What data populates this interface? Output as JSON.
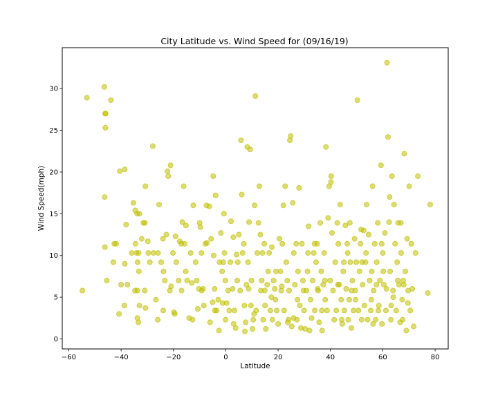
{
  "chart_data": {
    "type": "scatter",
    "title": "City Latitude vs. Wind Speed for (09/16/19)",
    "xlabel": "Latitude",
    "ylabel": "Wind Speed(mph)",
    "xlim": [
      -62.5,
      85
    ],
    "ylim": [
      -1.2,
      34.9
    ],
    "xticks": [
      -60,
      -40,
      -20,
      0,
      20,
      40,
      60,
      80
    ],
    "yticks": [
      0,
      5,
      10,
      15,
      20,
      25,
      30
    ],
    "grid": false,
    "legend": "none",
    "marker_color": "#bfbf00",
    "marker_opacity": 0.55,
    "points": [
      [
        -54.8,
        5.8
      ],
      [
        -53.1,
        28.9
      ],
      [
        -46.4,
        30.2
      ],
      [
        -46.1,
        27.0
      ],
      [
        -45.9,
        27.0
      ],
      [
        -46.0,
        25.3
      ],
      [
        -46.3,
        17.0
      ],
      [
        -46.2,
        11.0
      ],
      [
        -45.5,
        7.0
      ],
      [
        -43.9,
        28.6
      ],
      [
        -42.6,
        11.4
      ],
      [
        -41.9,
        11.4
      ],
      [
        -43.0,
        9.2
      ],
      [
        -40.5,
        20.1
      ],
      [
        -40.8,
        3.0
      ],
      [
        -38.6,
        20.3
      ],
      [
        -38.1,
        13.7
      ],
      [
        -37.6,
        6.5
      ],
      [
        -38.8,
        4.0
      ],
      [
        -38.6,
        9.0
      ],
      [
        -35.3,
        16.3
      ],
      [
        -34.6,
        15.4
      ],
      [
        -33.9,
        15.0
      ],
      [
        -33.0,
        15.0
      ],
      [
        -34.5,
        11.4
      ],
      [
        -34.1,
        10.3
      ],
      [
        -33.3,
        10.3
      ],
      [
        -33.7,
        9.2
      ],
      [
        -33.2,
        8.1
      ],
      [
        -33.8,
        5.8
      ],
      [
        -34.7,
        5.8
      ],
      [
        -33.0,
        4.0
      ],
      [
        -33.8,
        2.5
      ],
      [
        -33.4,
        2.0
      ],
      [
        -32.1,
        12.0
      ],
      [
        -31.5,
        13.9
      ],
      [
        -30.9,
        13.9
      ],
      [
        -30.7,
        18.3
      ],
      [
        -29.8,
        11.7
      ],
      [
        -29.6,
        10.3
      ],
      [
        -31.0,
        5.8
      ],
      [
        -30.7,
        3.7
      ],
      [
        -27.9,
        23.1
      ],
      [
        -27.6,
        10.3
      ],
      [
        -26.7,
        4.7
      ],
      [
        -25.5,
        16.1
      ],
      [
        -25.9,
        10.3
      ],
      [
        -24.7,
        9.2
      ],
      [
        -24.0,
        12.0
      ],
      [
        -23.8,
        8.1
      ],
      [
        -23.3,
        7.0
      ],
      [
        -23.9,
        3.4
      ],
      [
        -22.3,
        20.1
      ],
      [
        -22.0,
        19.5
      ],
      [
        -21.1,
        20.8
      ],
      [
        -21.4,
        5.8
      ],
      [
        -20.9,
        6.3
      ],
      [
        -20.2,
        10.3
      ],
      [
        -19.8,
        3.2
      ],
      [
        -19.5,
        3.0
      ],
      [
        -19.2,
        12.3
      ],
      [
        -18.9,
        9.2
      ],
      [
        -17.6,
        11.7
      ],
      [
        -16.9,
        5.8
      ],
      [
        -16.1,
        18.3
      ],
      [
        -16.6,
        14.0
      ],
      [
        -15.7,
        11.4
      ],
      [
        -15.2,
        13.6
      ],
      [
        -15.3,
        8.1
      ],
      [
        -14.8,
        7.0
      ],
      [
        -13.4,
        10.3
      ],
      [
        -13.0,
        6.7
      ],
      [
        -12.7,
        2.3
      ],
      [
        -12.4,
        16.0
      ],
      [
        -11.5,
        9.2
      ],
      [
        -11.1,
        7.0
      ],
      [
        -10.7,
        3.6
      ],
      [
        -10.0,
        13.9
      ],
      [
        -9.7,
        13.4
      ],
      [
        -9.3,
        10.3
      ],
      [
        -9.2,
        5.8
      ],
      [
        -8.7,
        6.0
      ],
      [
        -8.4,
        4.0
      ],
      [
        -7.8,
        11.4
      ],
      [
        -7.4,
        16.0
      ],
      [
        -7.2,
        11.5
      ],
      [
        -6.3,
        15.9
      ],
      [
        -5.6,
        12.0
      ],
      [
        -4.8,
        19.5
      ],
      [
        -4.6,
        10.0
      ],
      [
        -4.3,
        6.0
      ],
      [
        -4.2,
        3.4
      ],
      [
        -3.9,
        17.2
      ],
      [
        -3.5,
        3.4
      ],
      [
        -2.9,
        4.7
      ],
      [
        -2.4,
        9.2
      ],
      [
        -2.6,
        1.0
      ],
      [
        -1.9,
        12.7
      ],
      [
        -1.4,
        8.1
      ],
      [
        -1.2,
        4.3
      ],
      [
        -0.7,
        15.0
      ],
      [
        -0.5,
        10.3
      ],
      [
        -0.2,
        7.0
      ],
      [
        -0.1,
        2.3
      ],
      [
        0.3,
        4.3
      ],
      [
        0.9,
        5.8
      ],
      [
        1.3,
        3.4
      ],
      [
        1.7,
        9.2
      ],
      [
        2.0,
        14.1
      ],
      [
        2.6,
        6.0
      ],
      [
        2.9,
        12.2
      ],
      [
        3.3,
        3.4
      ],
      [
        3.8,
        1.3
      ],
      [
        4.1,
        10.1
      ],
      [
        4.6,
        9.2
      ],
      [
        5.0,
        12.5
      ],
      [
        5.5,
        5.8
      ],
      [
        5.8,
        23.8
      ],
      [
        6.1,
        17.3
      ],
      [
        6.4,
        10.3
      ],
      [
        6.9,
        11.4
      ],
      [
        7.1,
        4.0
      ],
      [
        7.3,
        0.9
      ],
      [
        7.6,
        2.0
      ],
      [
        7.9,
        6.5
      ],
      [
        8.2,
        23.0
      ],
      [
        8.5,
        9.2
      ],
      [
        8.9,
        14.0
      ],
      [
        9.3,
        22.7
      ],
      [
        9.6,
        4.0
      ],
      [
        9.8,
        7.0
      ],
      [
        10.2,
        1.2
      ],
      [
        10.5,
        2.3
      ],
      [
        11.0,
        16.0
      ],
      [
        11.3,
        29.1
      ],
      [
        11.6,
        3.4
      ],
      [
        12.0,
        10.3
      ],
      [
        12.5,
        13.9
      ],
      [
        12.8,
        18.3
      ],
      [
        13.2,
        12.5
      ],
      [
        13.7,
        7.0
      ],
      [
        14.0,
        10.3
      ],
      [
        14.3,
        2.3
      ],
      [
        14.7,
        11.4
      ],
      [
        15.0,
        4.0
      ],
      [
        15.3,
        1.2
      ],
      [
        15.8,
        6.5
      ],
      [
        16.2,
        8.1
      ],
      [
        16.6,
        10.3
      ],
      [
        17.0,
        3.4
      ],
      [
        17.4,
        5.0
      ],
      [
        17.8,
        2.3
      ],
      [
        18.3,
        7.0
      ],
      [
        18.7,
        6.0
      ],
      [
        19.0,
        4.7
      ],
      [
        19.5,
        3.4
      ],
      [
        20.0,
        1.8
      ],
      [
        20.5,
        12.0
      ],
      [
        20.9,
        8.1
      ],
      [
        21.2,
        5.8
      ],
      [
        21.6,
        11.4
      ],
      [
        22.0,
        16.0
      ],
      [
        22.3,
        3.4
      ],
      [
        22.7,
        18.3
      ],
      [
        23.1,
        9.2
      ],
      [
        23.5,
        7.0
      ],
      [
        23.9,
        2.3
      ],
      [
        24.2,
        5.8
      ],
      [
        24.5,
        23.8
      ],
      [
        24.8,
        24.3
      ],
      [
        25.2,
        1.5
      ],
      [
        25.6,
        16.3
      ],
      [
        26.0,
        10.3
      ],
      [
        26.4,
        6.5
      ],
      [
        26.9,
        11.4
      ],
      [
        27.2,
        2.3
      ],
      [
        27.6,
        8.1
      ],
      [
        28.0,
        18.1
      ],
      [
        28.3,
        4.0
      ],
      [
        28.7,
        1.3
      ],
      [
        29.1,
        11.4
      ],
      [
        29.5,
        7.0
      ],
      [
        29.9,
        3.4
      ],
      [
        30.3,
        1.2
      ],
      [
        30.8,
        5.8
      ],
      [
        31.2,
        8.1
      ],
      [
        31.6,
        13.5
      ],
      [
        32.0,
        1.0
      ],
      [
        32.4,
        4.7
      ],
      [
        32.8,
        2.5
      ],
      [
        33.2,
        7.0
      ],
      [
        33.6,
        10.3
      ],
      [
        34.0,
        3.4
      ],
      [
        34.5,
        9.2
      ],
      [
        34.9,
        11.4
      ],
      [
        35.3,
        5.8
      ],
      [
        35.7,
        2.0
      ],
      [
        36.1,
        13.9
      ],
      [
        36.5,
        8.1
      ],
      [
        36.8,
        1.0
      ],
      [
        37.2,
        6.5
      ],
      [
        37.6,
        10.3
      ],
      [
        38.0,
        4.7
      ],
      [
        38.3,
        23.0
      ],
      [
        38.7,
        3.4
      ],
      [
        39.1,
        14.5
      ],
      [
        39.5,
        18.3
      ],
      [
        39.9,
        7.0
      ],
      [
        40.3,
        19.5
      ],
      [
        40.6,
        12.7
      ],
      [
        41.0,
        5.8
      ],
      [
        41.4,
        2.3
      ],
      [
        41.8,
        9.2
      ],
      [
        42.2,
        3.4
      ],
      [
        42.6,
        13.9
      ],
      [
        43.0,
        11.4
      ],
      [
        43.3,
        6.5
      ],
      [
        43.7,
        16.1
      ],
      [
        44.1,
        4.7
      ],
      [
        44.5,
        1.8
      ],
      [
        44.9,
        8.1
      ],
      [
        45.3,
        3.4
      ],
      [
        45.7,
        13.6
      ],
      [
        46.0,
        6.0
      ],
      [
        46.4,
        11.4
      ],
      [
        46.8,
        2.3
      ],
      [
        47.2,
        4.7
      ],
      [
        47.6,
        9.2
      ],
      [
        48.0,
        1.3
      ],
      [
        48.4,
        7.0
      ],
      [
        48.8,
        3.4
      ],
      [
        49.2,
        12.0
      ],
      [
        49.5,
        5.8
      ],
      [
        49.9,
        9.2
      ],
      [
        50.3,
        28.6
      ],
      [
        50.7,
        3.4
      ],
      [
        51.1,
        8.1
      ],
      [
        51.5,
        11.4
      ],
      [
        51.9,
        2.3
      ],
      [
        52.3,
        6.5
      ],
      [
        52.7,
        13.0
      ],
      [
        53.0,
        4.0
      ],
      [
        53.4,
        9.2
      ],
      [
        53.8,
        16.1
      ],
      [
        54.2,
        2.3
      ],
      [
        54.6,
        12.5
      ],
      [
        55.0,
        7.0
      ],
      [
        55.4,
        3.4
      ],
      [
        55.8,
        8.1
      ],
      [
        56.1,
        18.3
      ],
      [
        56.5,
        5.8
      ],
      [
        56.9,
        11.4
      ],
      [
        57.3,
        2.3
      ],
      [
        57.7,
        9.2
      ],
      [
        58.1,
        13.9
      ],
      [
        58.5,
        4.0
      ],
      [
        58.9,
        7.0
      ],
      [
        59.3,
        20.8
      ],
      [
        59.7,
        1.8
      ],
      [
        60.0,
        10.3
      ],
      [
        60.4,
        6.5
      ],
      [
        60.8,
        12.7
      ],
      [
        61.2,
        3.4
      ],
      [
        61.6,
        33.1
      ],
      [
        62.0,
        24.2
      ],
      [
        62.4,
        14.0
      ],
      [
        62.8,
        8.1
      ],
      [
        63.1,
        2.3
      ],
      [
        63.5,
        19.5
      ],
      [
        63.9,
        5.8
      ],
      [
        64.3,
        16.1
      ],
      [
        64.7,
        11.4
      ],
      [
        65.1,
        3.4
      ],
      [
        65.5,
        9.2
      ],
      [
        65.9,
        13.9
      ],
      [
        66.2,
        6.5
      ],
      [
        66.6,
        2.0
      ],
      [
        67.0,
        10.3
      ],
      [
        67.4,
        4.7
      ],
      [
        67.8,
        7.0
      ],
      [
        68.2,
        22.2
      ],
      [
        68.6,
        8.1
      ],
      [
        69.0,
        1.0
      ],
      [
        69.3,
        12.0
      ],
      [
        69.7,
        5.8
      ],
      [
        70.1,
        18.3
      ],
      [
        70.5,
        3.4
      ],
      [
        70.9,
        11.4
      ],
      [
        71.3,
        6.0
      ],
      [
        71.8,
        1.5
      ],
      [
        72.5,
        10.3
      ],
      [
        73.4,
        19.5
      ],
      [
        77.2,
        5.5
      ],
      [
        78.1,
        16.1
      ],
      [
        -40.0,
        6.5
      ],
      [
        -36.0,
        10.3
      ],
      [
        -26.0,
        2.3
      ],
      [
        -18.0,
        7.0
      ],
      [
        -14.0,
        2.5
      ],
      [
        -6.0,
        2.0
      ],
      [
        -1.0,
        9.2
      ],
      [
        4.4,
        7.0
      ],
      [
        8.7,
        6.0
      ],
      [
        13.4,
        5.8
      ],
      [
        17.6,
        11.0
      ],
      [
        21.4,
        6.3
      ],
      [
        25.9,
        2.5
      ],
      [
        29.7,
        5.8
      ],
      [
        33.9,
        11.4
      ],
      [
        36.7,
        3.4
      ],
      [
        40.2,
        18.8
      ],
      [
        42.9,
        6.5
      ],
      [
        45.1,
        9.2
      ],
      [
        47.4,
        13.9
      ],
      [
        49.6,
        4.7
      ],
      [
        51.7,
        13.1
      ],
      [
        53.6,
        10.3
      ],
      [
        55.6,
        4.7
      ],
      [
        57.6,
        6.5
      ],
      [
        59.6,
        11.4
      ],
      [
        61.4,
        6.0
      ],
      [
        63.2,
        4.0
      ],
      [
        65.7,
        7.0
      ],
      [
        67.6,
        2.3
      ],
      [
        69.6,
        4.3
      ],
      [
        -29.0,
        9.2
      ],
      [
        -17.0,
        11.4
      ],
      [
        -5.0,
        4.4
      ],
      [
        3.0,
        1.8
      ],
      [
        10.8,
        3.0
      ],
      [
        19.2,
        8.1
      ],
      [
        27.4,
        4.7
      ],
      [
        31.4,
        10.3
      ],
      [
        37.9,
        7.0
      ],
      [
        44.3,
        2.3
      ],
      [
        48.1,
        5.8
      ],
      [
        52.1,
        9.2
      ],
      [
        56.3,
        1.8
      ],
      [
        60.2,
        8.1
      ],
      [
        64.0,
        5.0
      ],
      [
        68.0,
        6.5
      ],
      [
        14.9,
        5.8
      ],
      [
        23.7,
        2.0
      ],
      [
        35.1,
        6.0
      ],
      [
        46.6,
        10.3
      ],
      [
        58.3,
        3.4
      ],
      [
        62.6,
        17.0
      ],
      [
        66.9,
        13.9
      ],
      [
        -22.7,
        12.5
      ],
      [
        -10.3,
        6.0
      ]
    ]
  }
}
